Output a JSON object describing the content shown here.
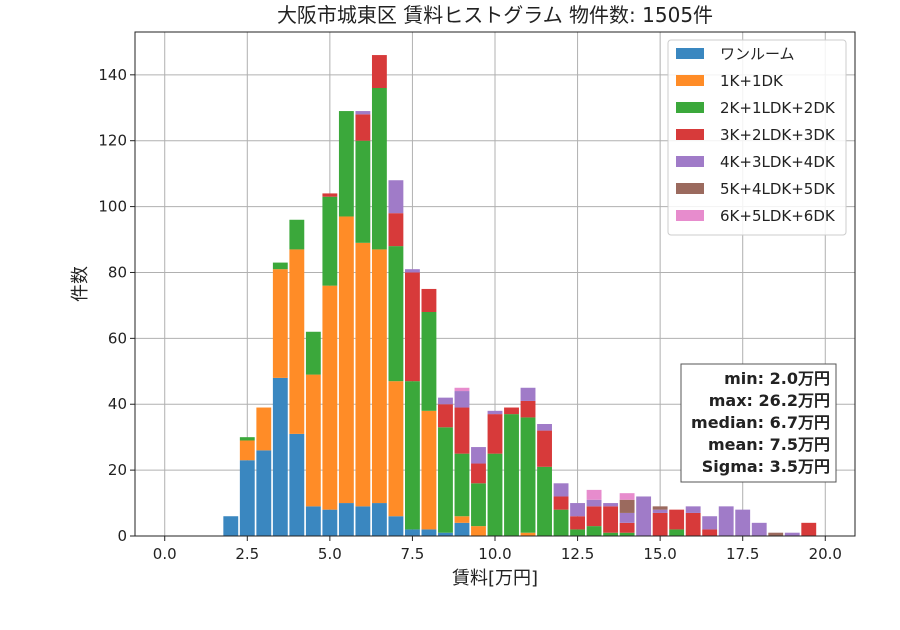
{
  "chart_data": {
    "type": "bar",
    "stacked": true,
    "title": "大阪市城東区 賃料ヒストグラム 物件数: 1505件",
    "xlabel": "賃料[万円]",
    "ylabel": "件数",
    "xlim": [
      -0.9,
      20.9
    ],
    "ylim": [
      0,
      153
    ],
    "xticks": [
      0.0,
      2.5,
      5.0,
      7.5,
      10.0,
      12.5,
      15.0,
      17.5,
      20.0
    ],
    "xtick_labels": [
      "0.0",
      "2.5",
      "5.0",
      "7.5",
      "10.0",
      "12.5",
      "15.0",
      "17.5",
      "20.0"
    ],
    "yticks": [
      0,
      20,
      40,
      60,
      80,
      100,
      120,
      140
    ],
    "ytick_labels": [
      "0",
      "20",
      "40",
      "60",
      "80",
      "100",
      "120",
      "140"
    ],
    "grid": true,
    "legend_position": "top-right",
    "bin_width": 0.5,
    "bins": [
      2.0,
      2.5,
      3.0,
      3.5,
      4.0,
      4.5,
      5.0,
      5.5,
      6.0,
      6.5,
      7.0,
      7.5,
      8.0,
      8.5,
      9.0,
      9.5,
      10.0,
      10.5,
      11.0,
      11.5,
      12.0,
      12.5,
      13.0,
      13.5,
      14.0,
      14.5,
      15.0,
      15.5,
      16.0,
      16.5,
      17.0,
      17.5,
      18.0,
      18.5,
      19.0,
      19.5,
      20.0
    ],
    "series": [
      {
        "name": "ワンルーム",
        "color": "#3a87c0",
        "values": [
          6,
          23,
          26,
          48,
          31,
          9,
          8,
          10,
          9,
          10,
          6,
          2,
          2,
          1,
          4,
          0,
          0,
          0,
          0,
          0,
          0,
          0,
          0,
          0,
          0,
          0,
          0,
          0,
          0,
          0,
          0,
          0,
          0,
          0,
          0,
          0,
          0
        ]
      },
      {
        "name": "1K+1DK",
        "color": "#ff8c27",
        "values": [
          0,
          6,
          13,
          33,
          56,
          40,
          68,
          87,
          80,
          77,
          41,
          0,
          36,
          0,
          2,
          3,
          0,
          0,
          1,
          0,
          0,
          0,
          0,
          0,
          0,
          0,
          0,
          0,
          0,
          0,
          0,
          0,
          0,
          0,
          0,
          0,
          0
        ]
      },
      {
        "name": "2K+1LDK+2DK",
        "color": "#3ba83b",
        "values": [
          0,
          1,
          0,
          2,
          9,
          13,
          27,
          32,
          31,
          49,
          41,
          45,
          30,
          32,
          19,
          13,
          25,
          37,
          35,
          21,
          8,
          2,
          3,
          1,
          1,
          0,
          0,
          2,
          0,
          0,
          0,
          0,
          0,
          0,
          0,
          0,
          0
        ]
      },
      {
        "name": "3K+2LDK+3DK",
        "color": "#d73a3a",
        "values": [
          0,
          0,
          0,
          0,
          0,
          0,
          1,
          0,
          8,
          10,
          10,
          33,
          7,
          7,
          14,
          6,
          12,
          2,
          5,
          11,
          4,
          4,
          6,
          8,
          3,
          0,
          7,
          6,
          7,
          2,
          0,
          0,
          0,
          0,
          0,
          4,
          0
        ]
      },
      {
        "name": "4K+3LDK+4DK",
        "color": "#a07bc8",
        "values": [
          0,
          0,
          0,
          0,
          0,
          0,
          0,
          0,
          1,
          0,
          10,
          1,
          0,
          2,
          5,
          5,
          1,
          0,
          4,
          2,
          4,
          4,
          2,
          1,
          3,
          12,
          1,
          0,
          2,
          4,
          9,
          8,
          4,
          0,
          1,
          0,
          0
        ]
      },
      {
        "name": "5K+4LDK+5DK",
        "color": "#9b6a5e",
        "values": [
          0,
          0,
          0,
          0,
          0,
          0,
          0,
          0,
          0,
          0,
          0,
          0,
          0,
          0,
          0,
          0,
          0,
          0,
          0,
          0,
          0,
          0,
          0,
          0,
          4,
          0,
          1,
          0,
          0,
          0,
          0,
          0,
          0,
          1,
          0,
          0,
          0
        ]
      },
      {
        "name": "6K+5LDK+6DK",
        "color": "#e78ccd",
        "values": [
          0,
          0,
          0,
          0,
          0,
          0,
          0,
          0,
          0,
          0,
          0,
          0,
          0,
          0,
          1,
          0,
          0,
          0,
          0,
          0,
          0,
          0,
          3,
          0,
          2,
          0,
          0,
          0,
          0,
          0,
          0,
          0,
          0,
          0,
          0,
          0,
          0
        ]
      }
    ],
    "stats": [
      "min: 2.0万円",
      "max: 26.2万円",
      "median: 6.7万円",
      "mean: 7.5万円",
      "Sigma: 3.5万円"
    ]
  }
}
